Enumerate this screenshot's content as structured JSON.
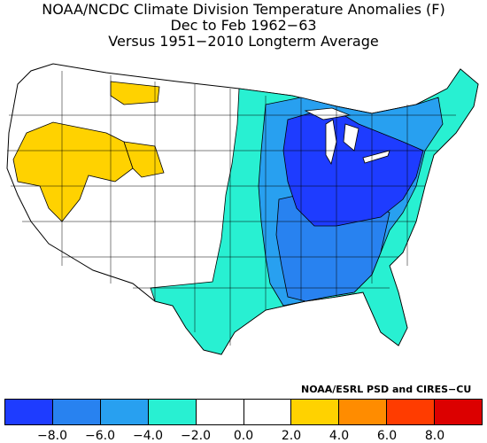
{
  "title": {
    "line1": "NOAA/NCDC Climate Division Temperature Anomalies (F)",
    "line2": "Dec to Feb 1962−63",
    "line3": "Versus 1951−2010 Longterm Average"
  },
  "credit": "NOAA/ESRL PSD and CIRES−CU",
  "legend": {
    "colors": [
      "#1e3cff",
      "#2882f0",
      "#28a0f0",
      "#28f0d2",
      "#ffffff",
      "#ffffff",
      "#ffd200",
      "#ff8c00",
      "#ff3c00",
      "#dc0000"
    ],
    "ticks": [
      "−8.0",
      "−6.0",
      "−4.0",
      "−2.0",
      "0.0",
      "2.0",
      "4.0",
      "6.0",
      "8.0"
    ],
    "unit": "F"
  },
  "regions": {
    "warm_west": "#ffd200",
    "neutral": "#ffffff",
    "plains_cool": "#28f0d2",
    "midwest_cool": "#28a0f0",
    "great_lakes_cold": "#1e3cff",
    "south_cool": "#2882f0"
  }
}
